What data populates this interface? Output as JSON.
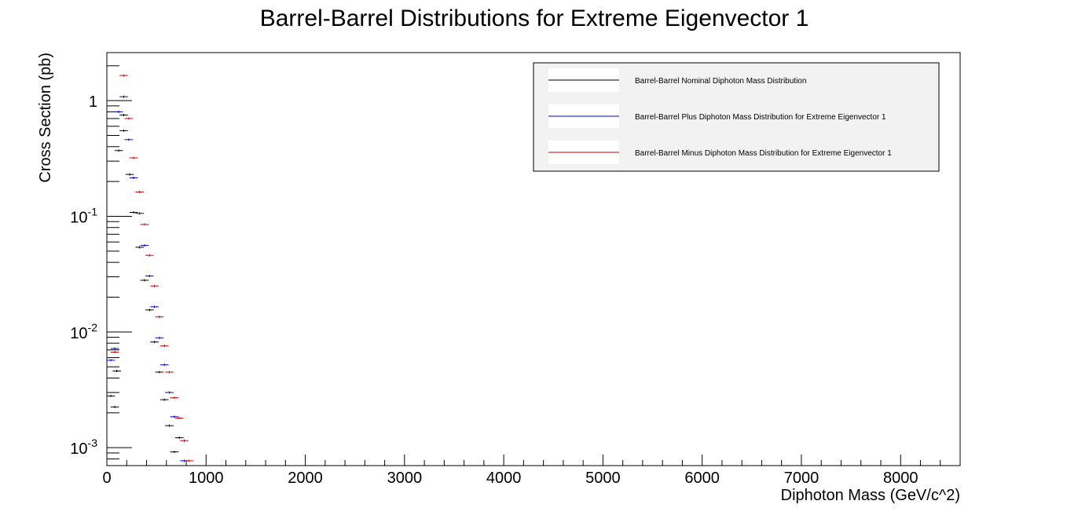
{
  "chart_data": {
    "type": "scatter",
    "title": "Barrel-Barrel Distributions for Extreme Eigenvector 1",
    "xlabel": "Diphoton Mass (GeV/c^2)",
    "ylabel": "Cross Section (pb)",
    "x_scale": "linear",
    "y_scale": "log",
    "xlim": [
      0,
      8600
    ],
    "ylim": [
      0.0007,
      2.6
    ],
    "x_ticks": [
      0,
      1000,
      2000,
      3000,
      4000,
      5000,
      6000,
      7000,
      8000
    ],
    "x_tick_labels": [
      "0",
      "1000",
      "2000",
      "3000",
      "4000",
      "5000",
      "6000",
      "7000",
      "8000"
    ],
    "y_ticks": [
      {
        "value": 1,
        "base": "1",
        "exp": ""
      },
      {
        "value": 0.1,
        "base": "10",
        "exp": "-1"
      },
      {
        "value": 0.01,
        "base": "10",
        "exp": "-2"
      },
      {
        "value": 0.001,
        "base": "10",
        "exp": "-3"
      }
    ],
    "grid": false,
    "legend_position": "top-right",
    "series": [
      {
        "name": "Barrel-Barrel Nominal Diphoton Mass Distribution",
        "color": "#000000",
        "points": [
          [
            40,
            0.0028
          ],
          [
            80,
            0.00225
          ],
          [
            100,
            0.0046
          ],
          [
            120,
            0.37
          ],
          [
            170,
            0.55
          ],
          [
            170,
            0.75
          ],
          [
            230,
            0.23
          ],
          [
            270,
            0.108
          ],
          [
            330,
            0.054
          ],
          [
            380,
            0.028
          ],
          [
            430,
            0.0155
          ],
          [
            480,
            0.0082
          ],
          [
            530,
            0.0045
          ],
          [
            580,
            0.0026
          ],
          [
            630,
            0.00155
          ],
          [
            680,
            0.00092
          ],
          [
            730,
            0.00122
          ]
        ]
      },
      {
        "name": "Barrel-Barrel Plus Diphoton Mass Distribution for Extreme Eigenvector 1",
        "color": "#0000cc",
        "points": [
          [
            40,
            0.0057
          ],
          [
            80,
            0.0072
          ],
          [
            120,
            0.8
          ],
          [
            170,
            1.08
          ],
          [
            220,
            0.46
          ],
          [
            270,
            0.215
          ],
          [
            330,
            0.106
          ],
          [
            380,
            0.056
          ],
          [
            430,
            0.0305
          ],
          [
            480,
            0.0165
          ],
          [
            530,
            0.0089
          ],
          [
            580,
            0.0052
          ],
          [
            630,
            0.003
          ],
          [
            680,
            0.00185
          ],
          [
            780,
            0.00077
          ]
        ]
      },
      {
        "name": "Barrel-Barrel Minus Diphoton Mass Distribution for Extreme Eigenvector 1",
        "color": "#cc0000",
        "points": [
          [
            80,
            0.0067
          ],
          [
            170,
            1.65
          ],
          [
            220,
            0.7
          ],
          [
            270,
            0.32
          ],
          [
            330,
            0.162
          ],
          [
            380,
            0.085
          ],
          [
            430,
            0.046
          ],
          [
            480,
            0.025
          ],
          [
            530,
            0.0135
          ],
          [
            580,
            0.0076
          ],
          [
            630,
            0.0045
          ],
          [
            680,
            0.0027
          ],
          [
            730,
            0.0018
          ],
          [
            780,
            0.00115
          ],
          [
            830,
            0.00077
          ]
        ]
      }
    ]
  }
}
